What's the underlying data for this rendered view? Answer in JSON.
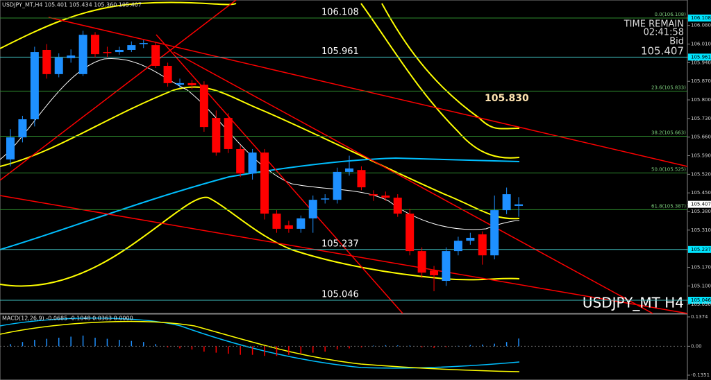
{
  "header": "USDJPY_MT,H4 105.401 105.434 105.360 105.407",
  "symbol": "USDJPY_MT H4",
  "timer": {
    "title": "TIME REMAIN",
    "time": "02:41:58",
    "bid_label": "Bid",
    "bid_price": "105.407"
  },
  "callout": "105.830",
  "price_axis": {
    "range": [
      106.108,
      105.046
    ],
    "ticks": [
      106.108,
      {
        "value": 106.08,
        "label": "106.080"
      },
      {
        "value": 106.01,
        "label": "106.010"
      },
      105.961,
      {
        "value": 105.94,
        "label": "105.940"
      },
      {
        "value": 105.87,
        "label": "105.870"
      },
      {
        "value": 105.8,
        "label": "105.800"
      },
      {
        "value": 105.73,
        "label": "105.730"
      },
      {
        "value": 105.66,
        "label": "105.660"
      },
      {
        "value": 105.59,
        "label": "105.590"
      },
      {
        "value": 105.52,
        "label": "105.520"
      },
      {
        "value": 105.45,
        "label": "105.450"
      },
      105.407,
      {
        "value": 105.38,
        "label": "105.380"
      },
      {
        "value": 105.31,
        "label": "105.310"
      },
      105.237,
      {
        "value": 105.17,
        "label": "105.170"
      },
      {
        "value": 105.1,
        "label": "105.100"
      },
      105.046,
      {
        "value": 105.03,
        "label": "105.030"
      }
    ]
  },
  "levels": [
    106.108,
    105.961,
    105.237,
    105.046
  ],
  "fib_levels": [
    {
      "value": 106.108,
      "label": "0.0(106.108)"
    },
    {
      "value": 105.833,
      "label": "23.6(105.833)"
    },
    {
      "value": 105.663,
      "label": "38.2(105.663)"
    },
    {
      "value": 105.525,
      "label": "50.0(105.525)"
    },
    {
      "value": 105.387,
      "label": "61.8(105.387)"
    }
  ],
  "candles": [
    [
      105.576,
      105.69,
      105.55,
      105.659
    ],
    [
      105.659,
      105.74,
      105.64,
      105.727
    ],
    [
      105.727,
      106.0,
      105.7,
      105.98
    ],
    [
      105.988,
      106.01,
      105.88,
      105.897
    ],
    [
      105.897,
      105.975,
      105.885,
      105.959
    ],
    [
      105.957,
      105.99,
      105.94,
      105.967
    ],
    [
      105.897,
      106.06,
      105.89,
      106.045
    ],
    [
      106.045,
      106.055,
      105.96,
      105.972
    ],
    [
      105.98,
      106.0,
      105.96,
      105.978
    ],
    [
      105.98,
      106.0,
      105.97,
      105.988
    ],
    [
      105.988,
      106.02,
      105.98,
      106.006
    ],
    [
      106.01,
      106.025,
      105.995,
      106.014
    ],
    [
      106.006,
      106.015,
      105.92,
      105.928
    ],
    [
      105.928,
      105.94,
      105.85,
      105.863
    ],
    [
      105.857,
      105.88,
      105.845,
      105.863
    ],
    [
      105.863,
      105.875,
      105.84,
      105.855
    ],
    [
      105.857,
      105.87,
      105.68,
      105.698
    ],
    [
      105.732,
      105.76,
      105.59,
      105.602
    ],
    [
      105.732,
      105.75,
      105.6,
      105.615
    ],
    [
      105.615,
      105.63,
      105.51,
      105.523
    ],
    [
      105.523,
      105.615,
      105.5,
      105.602
    ],
    [
      105.602,
      105.615,
      105.35,
      105.372
    ],
    [
      105.372,
      105.385,
      105.3,
      105.315
    ],
    [
      105.328,
      105.345,
      105.3,
      105.315
    ],
    [
      105.315,
      105.365,
      105.3,
      105.354
    ],
    [
      105.354,
      105.44,
      105.3,
      105.424
    ],
    [
      105.427,
      105.445,
      105.41,
      105.429
    ],
    [
      105.424,
      105.545,
      105.41,
      105.529
    ],
    [
      105.529,
      105.59,
      105.515,
      105.542
    ],
    [
      105.536,
      105.55,
      105.46,
      105.471
    ],
    [
      105.445,
      105.46,
      105.42,
      105.44
    ],
    [
      105.44,
      105.455,
      105.42,
      105.432
    ],
    [
      105.432,
      105.445,
      105.36,
      105.372
    ],
    [
      105.372,
      105.39,
      105.215,
      105.231
    ],
    [
      105.231,
      105.245,
      105.13,
      105.15
    ],
    [
      105.158,
      105.175,
      105.08,
      105.14
    ],
    [
      105.119,
      105.245,
      105.1,
      105.231
    ],
    [
      105.231,
      105.285,
      105.215,
      105.27
    ],
    [
      105.27,
      105.3,
      105.255,
      105.281
    ],
    [
      105.294,
      105.305,
      105.18,
      105.215
    ],
    [
      105.215,
      105.44,
      105.2,
      105.385
    ],
    [
      105.385,
      105.47,
      105.37,
      105.445
    ],
    [
      105.401,
      105.434,
      105.36,
      105.407
    ]
  ],
  "macd": {
    "header": "MACD(12,26,9) -0.0685 -0.1048 0.0363 0.0000",
    "range": [
      0.1374,
      -0.1351
    ],
    "ticks": [
      0.1374,
      {
        "value": 0,
        "label": "0.00"
      },
      -0.1351
    ],
    "histogram": [
      0.01,
      0.02,
      0.03,
      0.035,
      0.04,
      0.045,
      0.05,
      0.04,
      0.035,
      0.03,
      0.025,
      0.02,
      0.01,
      -0.005,
      -0.01,
      -0.015,
      -0.025,
      -0.03,
      -0.035,
      -0.04,
      -0.04,
      -0.045,
      -0.045,
      -0.04,
      -0.035,
      -0.03,
      -0.025,
      -0.015,
      -0.01,
      -0.005,
      0.003,
      0.005,
      0.004,
      0.003,
      -0.005,
      -0.008,
      -0.004,
      0.002,
      0.006,
      0.008,
      0.012,
      0.02,
      0.0363
    ]
  }
}
